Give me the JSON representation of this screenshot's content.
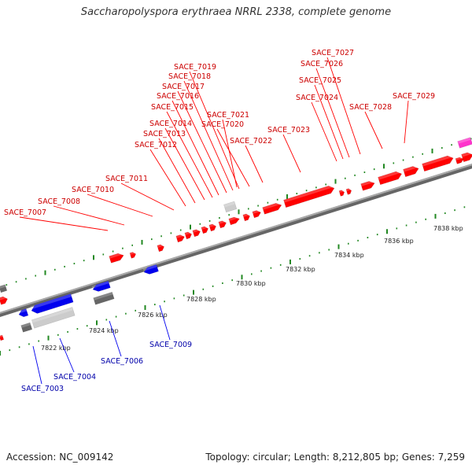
{
  "title": "Saccharopolyspora erythraea NRRL 2338, complete genome",
  "footer": {
    "accession": "Accession: NC_009142",
    "summary": "Topology: circular; Length: 8,212,805 bp; Genes: 7,259"
  },
  "colors": {
    "forward": "#ff0000",
    "reverse": "#0000ee",
    "pseudo": "#666666",
    "rna": "#cccccc",
    "other": "#ff33cc",
    "tick": "#228822",
    "backbone": "#888888"
  },
  "scale_labels": [
    "7822 kbp",
    "7824 kbp",
    "7826 kbp",
    "7828 kbp",
    "7830 kbp",
    "7832 kbp",
    "7834 kbp",
    "7836 kbp",
    "7838 kbp"
  ],
  "top_labels": [
    "SACE_7007",
    "SACE_7008",
    "SACE_7010",
    "SACE_7011",
    "SACE_7012",
    "SACE_7013",
    "SACE_7014",
    "SACE_7015",
    "SACE_7016",
    "SACE_7017",
    "SACE_7018",
    "SACE_7019",
    "SACE_7020",
    "SACE_7021",
    "SACE_7022",
    "SACE_7023",
    "SACE_7024",
    "SACE_7025",
    "SACE_7026",
    "SACE_7027",
    "SACE_7028",
    "SACE_7029"
  ],
  "bottom_labels": [
    "SACE_7003",
    "SACE_7004",
    "SACE_7006",
    "SACE_7009"
  ]
}
